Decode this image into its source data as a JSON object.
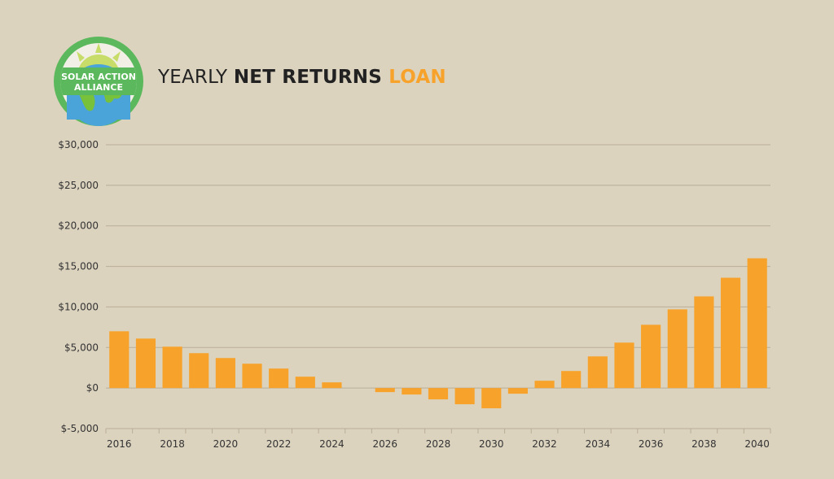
{
  "logo": {
    "line1": "SOLAR ACTION",
    "line2": "ALLIANCE",
    "colors": {
      "ring": "#5cb85c",
      "sun": "#c8dc6a",
      "ocean": "#4aa3d9",
      "land": "#78c13a",
      "text_bg": "#5cb85c"
    }
  },
  "title": {
    "part1": "YEARLY ",
    "part2": "NET RETURNS",
    "part3": " LOAN"
  },
  "colors": {
    "bar": "#f7a22a",
    "accent": "#f7a22a",
    "grid": "#b9ae97",
    "background": "#dcd3bf"
  },
  "chart_data": {
    "type": "bar",
    "categories": [
      "2016",
      "2017",
      "2018",
      "2019",
      "2020",
      "2021",
      "2022",
      "2023",
      "2024",
      "2025",
      "2026",
      "2027",
      "2028",
      "2029",
      "2030",
      "2031",
      "2032",
      "2033",
      "2034",
      "2035",
      "2036",
      "2037",
      "2038",
      "2039",
      "2040"
    ],
    "values": [
      7000,
      6100,
      5100,
      4300,
      3700,
      3000,
      2400,
      1400,
      700,
      0,
      -500,
      -800,
      -1400,
      -2000,
      -2500,
      -700,
      900,
      2100,
      3900,
      5600,
      7800,
      9700,
      11300,
      13600,
      16000
    ],
    "x_tick_labels": [
      "2016",
      "2018",
      "2020",
      "2022",
      "2024",
      "2026",
      "2028",
      "2030",
      "2032",
      "2034",
      "2036",
      "2038",
      "2040"
    ],
    "y_ticks": [
      -5000,
      0,
      5000,
      10000,
      15000,
      20000,
      25000,
      30000
    ],
    "y_tick_labels": [
      "$-5,000",
      "$0",
      "$5,000",
      "$10,000",
      "$15,000",
      "$20,000",
      "$25,000",
      "$30,000"
    ],
    "ylim": [
      -5000,
      30000
    ],
    "grid": true,
    "legend": "none"
  }
}
